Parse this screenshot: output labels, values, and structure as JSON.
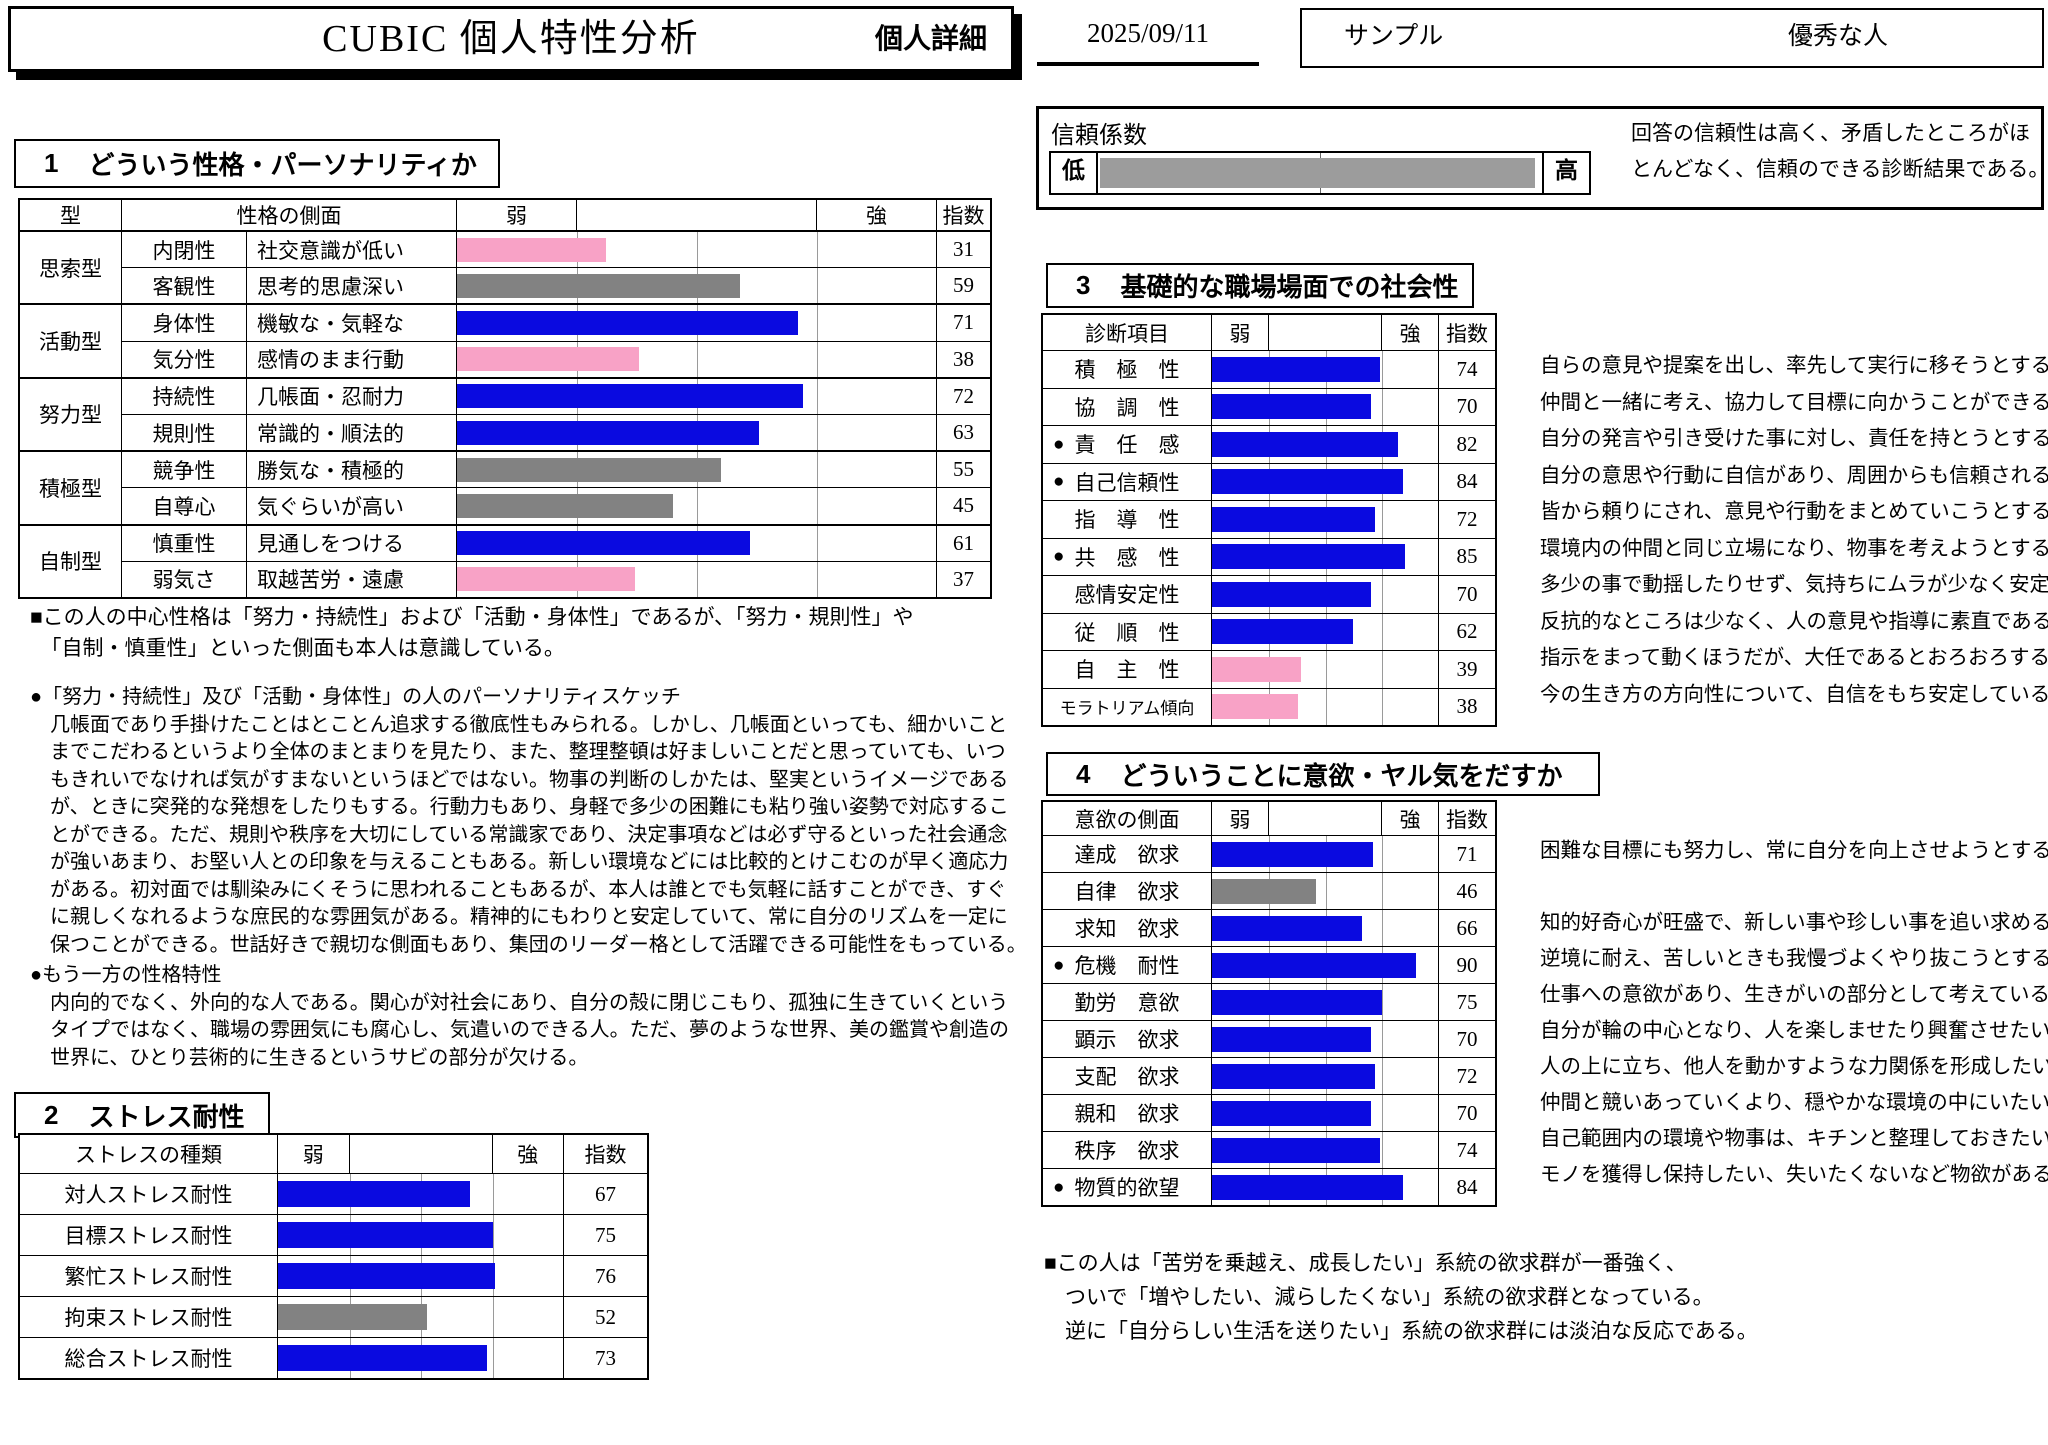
{
  "colors": {
    "blue": "#0a0ae0",
    "pink": "#f8a2c6",
    "gray": "#828282",
    "reliability_fill": "#9c9c9c"
  },
  "header": {
    "title": "CUBIC 個人特性分析",
    "subtitle": "個人詳細",
    "date": "2025/09/11",
    "name_left": "サンプル",
    "name_right": "優秀な人"
  },
  "reliability": {
    "label": "信頼係数",
    "low": "低",
    "high": "高",
    "fill_percent": 98.5,
    "note_lines": [
      "回答の信頼性は高く、矛盾したところがほ",
      "とんどなく、信頼のできる診断結果である。"
    ]
  },
  "section1": {
    "number": "1",
    "title": "どういう性格・パーソナリティか",
    "col_type": "型",
    "col_aspect": "性格の側面",
    "col_weak": "弱",
    "col_strong": "強",
    "col_index": "指数",
    "groups": [
      {
        "type": "思索型",
        "rows": [
          {
            "trait": "内閉性",
            "desc": "社交意識が低い",
            "value": 31,
            "color": "pink"
          },
          {
            "trait": "客観性",
            "desc": "思考的思慮深い",
            "value": 59,
            "color": "gray"
          }
        ]
      },
      {
        "type": "活動型",
        "rows": [
          {
            "trait": "身体性",
            "desc": "機敏な・気軽な",
            "value": 71,
            "color": "blue"
          },
          {
            "trait": "気分性",
            "desc": "感情のまま行動",
            "value": 38,
            "color": "pink"
          }
        ]
      },
      {
        "type": "努力型",
        "rows": [
          {
            "trait": "持続性",
            "desc": "几帳面・忍耐力",
            "value": 72,
            "color": "blue"
          },
          {
            "trait": "規則性",
            "desc": "常識的・順法的",
            "value": 63,
            "color": "blue"
          }
        ]
      },
      {
        "type": "積極型",
        "rows": [
          {
            "trait": "競争性",
            "desc": "勝気な・積極的",
            "value": 55,
            "color": "gray"
          },
          {
            "trait": "自尊心",
            "desc": "気ぐらいが高い",
            "value": 45,
            "color": "gray"
          }
        ]
      },
      {
        "type": "自制型",
        "rows": [
          {
            "trait": "慎重性",
            "desc": "見通しをつける",
            "value": 61,
            "color": "blue"
          },
          {
            "trait": "弱気さ",
            "desc": "取越苦労・遠慮",
            "value": 37,
            "color": "pink"
          }
        ]
      }
    ],
    "summary_lines": [
      "■この人の中心性格は「努力・持続性」および「活動・身体性」であるが、「努力・規則性」や",
      "　「自制・慎重性」といった側面も本人は意識している。"
    ],
    "sketch_lines": [
      "●「努力・持続性」及び「活動・身体性」の人のパーソナリティスケッチ",
      "　几帳面であり手掛けたことはとことん追求する徹底性もみられる。しかし、几帳面といっても、細かいこと",
      "　までこだわるというより全体のまとまりを見たり、また、整理整頓は好ましいことだと思っていても、いつ",
      "　もきれいでなければ気がすまないというほどではない。物事の判断のしかたは、堅実というイメージである",
      "　が、ときに突発的な発想をしたりもする。行動力もあり、身軽で多少の困難にも粘り強い姿勢で対応するこ",
      "　とができる。ただ、規則や秩序を大切にしている常識家であり、決定事項などは必ず守るといった社会通念",
      "　が強いあまり、お堅い人との印象を与えることもある。新しい環境などには比較的とけこむのが早く適応力",
      "　がある。初対面では馴染みにくそうに思われることもあるが、本人は誰とでも気軽に話すことができ、すぐ",
      "　に親しくなれるような庶民的な雰囲気がある。精神的にもわりと安定していて、常に自分のリズムを一定に",
      "　保つことができる。世話好きで親切な側面もあり、集団のリーダー格として活躍できる可能性をもっている。"
    ],
    "other_lines": [
      "●もう一方の性格特性",
      "　内向的でなく、外向的な人である。関心が対社会にあり、自分の殻に閉じこもり、孤独に生きていくという",
      "　タイプではなく、職場の雰囲気にも腐心し、気遣いのできる人。ただ、夢のような世界、美の鑑賞や創造の",
      "　世界に、ひとり芸術的に生きるというサビの部分が欠ける。"
    ]
  },
  "section2": {
    "number": "2",
    "title": "ストレス耐性",
    "col_label": "ストレスの種類",
    "col_weak": "弱",
    "col_strong": "強",
    "col_index": "指数",
    "rows": [
      {
        "label": "対人ストレス耐性",
        "value": 67,
        "color": "blue"
      },
      {
        "label": "目標ストレス耐性",
        "value": 75,
        "color": "blue"
      },
      {
        "label": "繁忙ストレス耐性",
        "value": 76,
        "color": "blue"
      },
      {
        "label": "拘束ストレス耐性",
        "value": 52,
        "color": "gray"
      },
      {
        "label": "総合ストレス耐性",
        "value": 73,
        "color": "blue"
      }
    ]
  },
  "section3": {
    "number": "3",
    "title": "基礎的な職場場面での社会性",
    "col_label": "診断項目",
    "col_weak": "弱",
    "col_strong": "強",
    "col_index": "指数",
    "rows": [
      {
        "label": "積　極　性",
        "bullet": false,
        "value": 74,
        "color": "blue",
        "desc": "自らの意見や提案を出し、率先して実行に移そうとする。"
      },
      {
        "label": "協　調　性",
        "bullet": false,
        "value": 70,
        "color": "blue",
        "desc": "仲間と一緒に考え、協力して目標に向かうことができる。"
      },
      {
        "label": "責　任　感",
        "bullet": true,
        "value": 82,
        "color": "blue",
        "desc": "自分の発言や引き受けた事に対し、責任を持とうとする。"
      },
      {
        "label": "自己信頼性",
        "bullet": true,
        "value": 84,
        "color": "blue",
        "desc": "自分の意思や行動に自信があり、周囲からも信頼される。"
      },
      {
        "label": "指　導　性",
        "bullet": false,
        "value": 72,
        "color": "blue",
        "desc": "皆から頼りにされ、意見や行動をまとめていこうとする。"
      },
      {
        "label": "共　感　性",
        "bullet": true,
        "value": 85,
        "color": "blue",
        "desc": "環境内の仲間と同じ立場になり、物事を考えようとする。"
      },
      {
        "label": "感情安定性",
        "bullet": false,
        "value": 70,
        "color": "blue",
        "desc": "多少の事で動揺したりせず、気持ちにムラが少なく安定。"
      },
      {
        "label": "従　順　性",
        "bullet": false,
        "value": 62,
        "color": "blue",
        "desc": "反抗的なところは少なく、人の意見や指導に素直である。"
      },
      {
        "label": "自　主　性",
        "bullet": false,
        "value": 39,
        "color": "pink",
        "desc": "指示をまって動くほうだが、大任であるとおろおろする。"
      },
      {
        "label": "モラトリアム傾向",
        "bullet": false,
        "small": true,
        "value": 38,
        "color": "pink",
        "desc": "今の生き方の方向性について、自信をもち安定している。"
      }
    ]
  },
  "section4": {
    "number": "4",
    "title": "どういうことに意欲・ヤル気をだすか",
    "col_label": "意欲の側面",
    "col_weak": "弱",
    "col_strong": "強",
    "col_index": "指数",
    "rows": [
      {
        "label": "達成　欲求",
        "bullet": false,
        "value": 71,
        "color": "blue",
        "desc": "困難な目標にも努力し、常に自分を向上させようとする。"
      },
      {
        "label": "自律　欲求",
        "bullet": false,
        "value": 46,
        "color": "gray",
        "desc": ""
      },
      {
        "label": "求知　欲求",
        "bullet": false,
        "value": 66,
        "color": "blue",
        "desc": "知的好奇心が旺盛で、新しい事や珍しい事を追い求める。"
      },
      {
        "label": "危機　耐性",
        "bullet": true,
        "value": 90,
        "color": "blue",
        "desc": "逆境に耐え、苦しいときも我慢づよくやり抜こうとする。"
      },
      {
        "label": "勤労　意欲",
        "bullet": false,
        "value": 75,
        "color": "blue",
        "desc": "仕事への意欲があり、生きがいの部分として考えている。"
      },
      {
        "label": "顕示　欲求",
        "bullet": false,
        "value": 70,
        "color": "blue",
        "desc": "自分が輪の中心となり、人を楽しませたり興奮させたい。"
      },
      {
        "label": "支配　欲求",
        "bullet": false,
        "value": 72,
        "color": "blue",
        "desc": "人の上に立ち、他人を動かすような力関係を形成したい。"
      },
      {
        "label": "親和　欲求",
        "bullet": false,
        "value": 70,
        "color": "blue",
        "desc": "仲間と競いあっていくより、穏やかな環境の中にいたい。"
      },
      {
        "label": "秩序　欲求",
        "bullet": false,
        "value": 74,
        "color": "blue",
        "desc": "自己範囲内の環境や物事は、キチンと整理しておきたい。"
      },
      {
        "label": "物質的欲望",
        "bullet": true,
        "value": 84,
        "color": "blue",
        "desc": "モノを獲得し保持したい、失いたくないなど物欲がある。"
      }
    ],
    "summary_lines": [
      "■この人は「苦労を乗越え、成長したい」系統の欲求群が一番強く、",
      "　ついで「増やしたい、減らしたくない」系統の欲求群となっている。",
      "　逆に「自分らしい生活を送りたい」系統の欲求群には淡泊な反応である。"
    ]
  }
}
